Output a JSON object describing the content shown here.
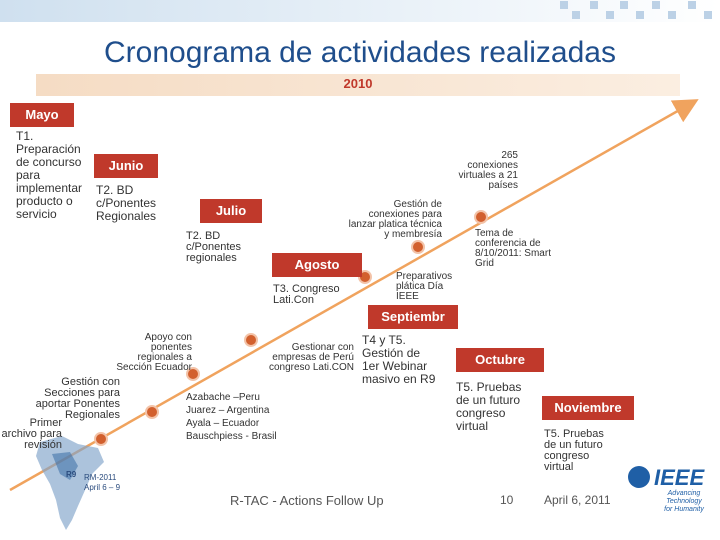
{
  "title": "Cronograma de actividades realizadas",
  "year": "2010",
  "months": {
    "mayo": "Mayo",
    "junio": "Junio",
    "julio": "Julio",
    "agosto": "Agosto",
    "septiembre": "Septiembr",
    "octubre": "Octubre",
    "noviembre": "Noviembre"
  },
  "notes": {
    "t1": [
      "T1.",
      "Preparación",
      "de concurso",
      "para",
      "implementar",
      "producto o",
      "servicio"
    ],
    "t2_junio": [
      "T2. BD",
      "c/Ponentes",
      "Regionales"
    ],
    "t2_julio": [
      "T2. BD",
      "c/Ponentes",
      "regionales"
    ],
    "gestion_platica": [
      "Gestión de",
      "conexiones para",
      "lanzar platica técnica",
      "y membresía"
    ],
    "conexiones_265": [
      "265",
      "conexiones",
      "virtuales a 21",
      "países"
    ],
    "tema_conferencia": [
      "Tema de",
      "conferencia de",
      "8/10/2011: Smart",
      "Grid"
    ],
    "t3_congreso": [
      "T3. Congreso",
      "Lati.Con"
    ],
    "preparativos": [
      "Preparativos",
      "plática Día",
      "IEEE"
    ],
    "apoyo_ponentes": [
      "Apoyo con",
      "ponentes",
      "regionales a",
      "Sección Ecuador"
    ],
    "gestionar_empresas": [
      "Gestionar con",
      "empresas de Perú",
      "congreso Lati.CON"
    ],
    "t4_t5": [
      "T4 y T5.",
      "Gestión de",
      "1er Webinar",
      "masivo en R9"
    ],
    "gestion_secciones": [
      "Gestión con",
      "Secciones para",
      "aportar Ponentes",
      "Regionales"
    ],
    "primer_archivo": [
      "Primer",
      "archivo para",
      "revisión"
    ],
    "ponentes_lista": [
      "Azabache –Peru",
      "Juarez – Argentina",
      "Ayala – Ecuador",
      "Bauschpiess - Brasil"
    ],
    "t5_octubre": [
      "T5. Pruebas",
      "de un futuro",
      "congreso",
      "virtual"
    ],
    "t5_noviembre": [
      "T5. Pruebas",
      "de un futuro",
      "congreso",
      "virtual"
    ],
    "rm_meeting": [
      "RM-2011",
      "April 6 – 9"
    ],
    "r9_label": "R9"
  },
  "footer": {
    "center": "R-TAC - Actions Follow Up",
    "page": "10",
    "date": "April 6, 2011"
  },
  "logo": {
    "name": "IEEE",
    "tagline": [
      "Advancing Technology",
      "for Humanity"
    ]
  },
  "colors": {
    "title": "#1f4e8c",
    "month_box": "#c0392b",
    "timeline": "#f0a35e",
    "milestone": "#d2602e",
    "year_band": "#f5dcc4"
  }
}
